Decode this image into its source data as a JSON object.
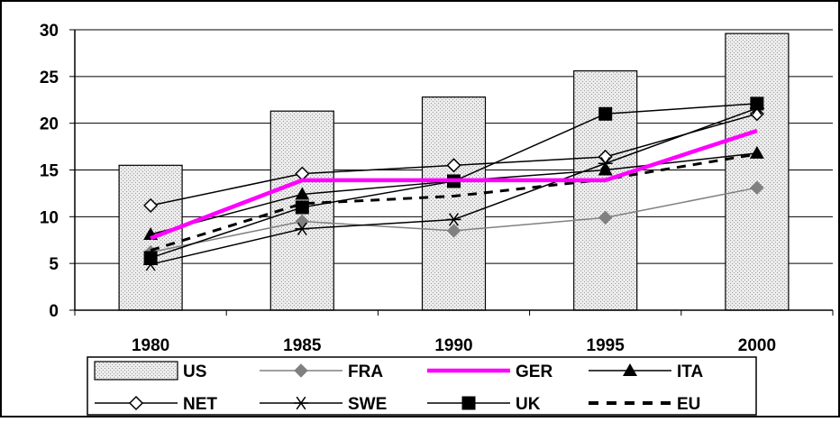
{
  "chart_data": {
    "type": "bar",
    "categories": [
      "1980",
      "1985",
      "1990",
      "1995",
      "2000"
    ],
    "ylim": [
      0,
      30
    ],
    "yticks": [
      0,
      5,
      10,
      15,
      20,
      25,
      30
    ],
    "grid": true,
    "legend_position": "bottom",
    "series": [
      {
        "name": "US",
        "kind": "bar",
        "values": [
          15.5,
          21.3,
          22.8,
          25.6,
          29.6
        ],
        "color": "#d9d9d9"
      },
      {
        "name": "FRA",
        "kind": "line",
        "marker": "diamond-filled",
        "values": [
          6.2,
          9.5,
          8.5,
          9.9,
          13.1
        ],
        "color": "#808080"
      },
      {
        "name": "GER",
        "kind": "line",
        "marker": "none",
        "values": [
          7.7,
          13.9,
          13.9,
          13.9,
          19.2
        ],
        "color": "#ff00ff"
      },
      {
        "name": "ITA",
        "kind": "line",
        "marker": "triangle",
        "values": [
          8.1,
          12.4,
          13.8,
          15.0,
          16.8
        ],
        "color": "#000000"
      },
      {
        "name": "NET",
        "kind": "line",
        "marker": "diamond-open",
        "values": [
          11.2,
          14.6,
          15.5,
          16.4,
          21.0
        ],
        "color": "#000000"
      },
      {
        "name": "SWE",
        "kind": "line",
        "marker": "star",
        "values": [
          4.9,
          8.7,
          9.7,
          15.7,
          21.6
        ],
        "color": "#000000"
      },
      {
        "name": "UK",
        "kind": "line",
        "marker": "square",
        "values": [
          5.6,
          11.0,
          13.8,
          21.0,
          22.1
        ],
        "color": "#000000"
      },
      {
        "name": "EU",
        "kind": "line",
        "marker": "none",
        "dashed": true,
        "values": [
          6.4,
          11.4,
          12.2,
          14.0,
          16.7
        ],
        "color": "#000000"
      }
    ]
  }
}
